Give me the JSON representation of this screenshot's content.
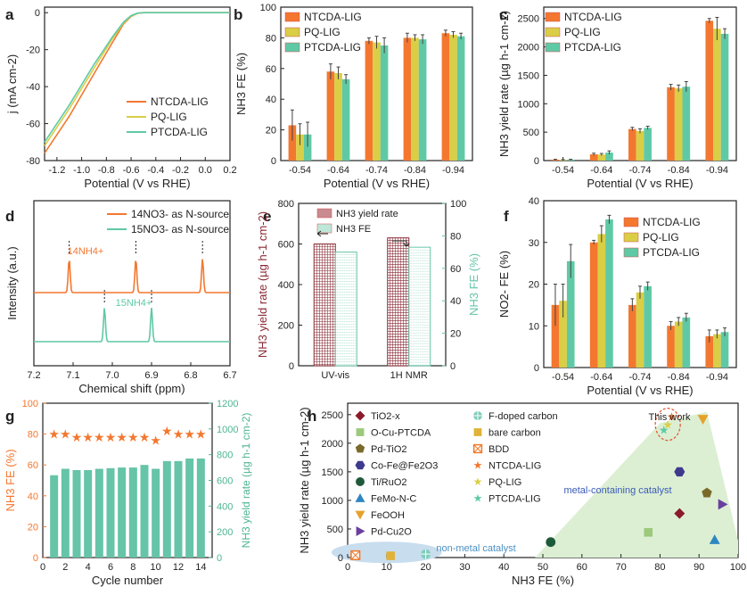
{
  "colors": {
    "orange": "#F4772F",
    "yellow": "#D9CE45",
    "teal": "#5FC9A6",
    "maroon": "#8A2A35",
    "mint": "#66C4A8",
    "axisOrange": "#F4772F",
    "axisTeal": "#4DB592",
    "annot": "#3A5BB8",
    "region_green": "#DCEFD3",
    "region_blue": "#C8DDEE",
    "marker_red": "#E55A35"
  },
  "panel_labels": [
    "a",
    "b",
    "c",
    "d",
    "e",
    "f",
    "g",
    "h"
  ],
  "chart_data": [
    {
      "panel": "a",
      "type": "line",
      "xlabel": "Potential (V vs RHE)",
      "ylabel": "j (mA cm-2)",
      "xlim": [
        -1.3,
        0.2
      ],
      "ylim": [
        -80,
        3
      ],
      "xticks": [
        "-1.2",
        "-1.0",
        "-0.8",
        "-0.6",
        "-0.4",
        "-0.2",
        "0.0",
        "0.2"
      ],
      "yticks": [
        "0",
        "-20",
        "-40",
        "-60",
        "-80"
      ],
      "series": [
        {
          "name": "NTCDA-LIG",
          "onset": -0.56,
          "points": [
            [
              -1.3,
              -76
            ],
            [
              -1.1,
              -56
            ],
            [
              -0.9,
              -33
            ],
            [
              -0.75,
              -16
            ],
            [
              -0.66,
              -6
            ],
            [
              -0.6,
              -2
            ],
            [
              -0.55,
              -0.4
            ],
            [
              -0.5,
              0
            ],
            [
              0.2,
              0
            ]
          ]
        },
        {
          "name": "PQ-LIG",
          "onset": -0.55,
          "points": [
            [
              -1.3,
              -72
            ],
            [
              -1.1,
              -52
            ],
            [
              -0.9,
              -30
            ],
            [
              -0.75,
              -14
            ],
            [
              -0.66,
              -5.5
            ],
            [
              -0.6,
              -1.8
            ],
            [
              -0.55,
              -0.4
            ],
            [
              -0.5,
              0
            ],
            [
              0.2,
              0
            ]
          ]
        },
        {
          "name": "PTCDA-LIG",
          "onset": -0.54,
          "points": [
            [
              -1.3,
              -70
            ],
            [
              -1.1,
              -50
            ],
            [
              -0.9,
              -28
            ],
            [
              -0.75,
              -13
            ],
            [
              -0.66,
              -5
            ],
            [
              -0.6,
              -1.6
            ],
            [
              -0.55,
              -0.3
            ],
            [
              -0.5,
              0
            ],
            [
              0.2,
              0
            ]
          ]
        }
      ]
    },
    {
      "panel": "b",
      "type": "bar",
      "xlabel": "Potential (V vs RHE)",
      "ylabel": "NH3 FE (%)",
      "categories": [
        "-0.54",
        "-0.64",
        "-0.74",
        "-0.84",
        "-0.94"
      ],
      "ylim": [
        0,
        100
      ],
      "yticks": [
        "0",
        "20",
        "40",
        "60",
        "80",
        "100"
      ],
      "series": [
        {
          "name": "NTCDA-LIG",
          "values": [
            23,
            58,
            78,
            80,
            83
          ],
          "errors": [
            10,
            5,
            2,
            3,
            2
          ]
        },
        {
          "name": "PQ-LIG",
          "values": [
            17,
            57,
            77,
            80,
            82
          ],
          "errors": [
            7,
            4,
            4,
            2,
            2
          ]
        },
        {
          "name": "PTCDA-LIG",
          "values": [
            17,
            53,
            75,
            79,
            81
          ],
          "errors": [
            8,
            3,
            5,
            3,
            2
          ]
        }
      ]
    },
    {
      "panel": "c",
      "type": "bar",
      "xlabel": "Potential (V vs RHE)",
      "ylabel": "NH3 yield rate (µg h-1 cm-2)",
      "categories": [
        "-0.54",
        "-0.64",
        "-0.74",
        "-0.84",
        "-0.94"
      ],
      "ylim": [
        0,
        2700
      ],
      "yticks": [
        "0",
        "500",
        "1000",
        "1500",
        "2000",
        "2500"
      ],
      "series": [
        {
          "name": "NTCDA-LIG",
          "values": [
            15,
            110,
            555,
            1290,
            2460
          ],
          "errors": [
            8,
            20,
            30,
            50,
            40
          ]
        },
        {
          "name": "PQ-LIG",
          "values": [
            10,
            105,
            520,
            1270,
            2320
          ],
          "errors": [
            8,
            20,
            40,
            60,
            200
          ]
        },
        {
          "name": "PTCDA-LIG",
          "values": [
            15,
            140,
            575,
            1300,
            2230
          ],
          "errors": [
            8,
            30,
            30,
            90,
            90
          ]
        }
      ]
    },
    {
      "panel": "d",
      "type": "line",
      "xlabel": "Chemical shift (ppm)",
      "ylabel": "Intensity (a.u.)",
      "xlim": [
        7.2,
        6.7
      ],
      "xticks": [
        "7.2",
        "7.1",
        "7.0",
        "6.9",
        "6.8",
        "6.7"
      ],
      "series": [
        {
          "name": "14NO3- as N-source",
          "peaks": [
            7.11,
            6.94,
            6.77
          ],
          "peak_label": "14NH4+"
        },
        {
          "name": "15NO3- as N-source",
          "peaks": [
            7.02,
            6.9
          ],
          "peak_label": "15NH4+"
        }
      ]
    },
    {
      "panel": "e",
      "type": "bar",
      "categories": [
        "UV-vis",
        "1H NMR"
      ],
      "ylabel_left": "NH3 yield rate (µg h-1 cm-2)",
      "ylabel_right": "NH3 FE (%)",
      "ylim_left": [
        0,
        800
      ],
      "ylim_right": [
        0,
        100
      ],
      "yticks_left": [
        "0",
        "200",
        "400",
        "600",
        "800"
      ],
      "yticks_right": [
        "0",
        "20",
        "40",
        "60",
        "80",
        "100"
      ],
      "series": [
        {
          "name": "NH3 yield rate",
          "axis": "left",
          "values": [
            600,
            630
          ]
        },
        {
          "name": "NH3 FE",
          "axis": "right",
          "values": [
            70,
            73
          ]
        }
      ]
    },
    {
      "panel": "f",
      "type": "bar",
      "xlabel": "Potential (V vs RHE)",
      "ylabel": "NO2- FE (%)",
      "categories": [
        "-0.54",
        "-0.64",
        "-0.74",
        "-0.84",
        "-0.94"
      ],
      "ylim": [
        0,
        40
      ],
      "yticks": [
        "0",
        "10",
        "20",
        "30",
        "40"
      ],
      "series": [
        {
          "name": "NTCDA-LIG",
          "values": [
            15,
            30,
            15,
            10,
            7.5
          ],
          "errors": [
            5,
            0.5,
            1.5,
            1,
            1.5
          ]
        },
        {
          "name": "PQ-LIG",
          "values": [
            16,
            32,
            18,
            11,
            8
          ],
          "errors": [
            4,
            2,
            1.5,
            1,
            1
          ]
        },
        {
          "name": "PTCDA-LIG",
          "values": [
            25.5,
            35.5,
            19.5,
            12,
            8.5
          ],
          "errors": [
            4,
            1,
            1,
            1,
            1
          ]
        }
      ]
    },
    {
      "panel": "g",
      "type": "bar",
      "xlabel": "Cycle number",
      "ylabel_left": "NH3 FE (%)",
      "ylabel_right": "NH3 yield rate (µg h-1 cm-2)",
      "xlim": [
        0,
        15
      ],
      "xticks": [
        "0",
        "2",
        "4",
        "6",
        "8",
        "10",
        "12",
        "14"
      ],
      "ylim_left": [
        0,
        100
      ],
      "yticks_left": [
        "0",
        "20",
        "40",
        "60",
        "80",
        "100"
      ],
      "ylim_right": [
        0,
        1200
      ],
      "yticks_right": [
        "0",
        "200",
        "400",
        "600",
        "800",
        "1000",
        "1200"
      ],
      "x": [
        1,
        2,
        3,
        4,
        5,
        6,
        7,
        8,
        9,
        10,
        11,
        12,
        13,
        14
      ],
      "series": [
        {
          "name": "NH3 FE",
          "axis": "left",
          "values": [
            80,
            80,
            78,
            78,
            78,
            78,
            78,
            78,
            78,
            76,
            82,
            80,
            80,
            80
          ]
        },
        {
          "name": "NH3 yield rate",
          "axis": "right",
          "values": [
            640,
            690,
            680,
            680,
            690,
            695,
            700,
            700,
            720,
            690,
            750,
            750,
            770,
            770
          ]
        }
      ]
    },
    {
      "panel": "h",
      "type": "scatter",
      "xlabel": "NH3 FE (%)",
      "ylabel": "NH3 yield rate (µg h-1 cm-2)",
      "xlim": [
        0,
        100
      ],
      "ylim": [
        0,
        2700
      ],
      "xticks": [
        "0",
        "10",
        "20",
        "30",
        "40",
        "50",
        "60",
        "70",
        "80",
        "90",
        "100"
      ],
      "yticks": [
        "0",
        "500",
        "1000",
        "1500",
        "2000",
        "2500"
      ],
      "annotations": [
        "This work",
        "metal-containing catalyst",
        "non-metal catalyst"
      ],
      "points": [
        {
          "name": "TiO2-x",
          "x": 85,
          "y": 770,
          "shape": "diamond",
          "color": "#8B1A2B"
        },
        {
          "name": "O-Cu-PTCDA",
          "x": 77,
          "y": 440,
          "shape": "square",
          "color": "#9CC97A"
        },
        {
          "name": "Pd-TiO2",
          "x": 92,
          "y": 1130,
          "shape": "pentagon",
          "color": "#7A6A2A"
        },
        {
          "name": "Co-Fe@Fe2O3",
          "x": 85,
          "y": 1500,
          "shape": "hexagon",
          "color": "#3D3A8E"
        },
        {
          "name": "Ti/RuO2",
          "x": 52,
          "y": 270,
          "shape": "circle",
          "color": "#1E5A3A"
        },
        {
          "name": "FeMo-N-C",
          "x": 94,
          "y": 310,
          "shape": "triangle-up",
          "color": "#2E86C1"
        },
        {
          "name": "FeOOH",
          "x": 91,
          "y": 2420,
          "shape": "triangle-down",
          "color": "#E5A22A"
        },
        {
          "name": "Pd-Cu2O",
          "x": 96,
          "y": 930,
          "shape": "triangle-right",
          "color": "#6B3FA0"
        },
        {
          "name": "F-doped carbon",
          "x": 20,
          "y": 60,
          "shape": "circle-cross",
          "color": "#7FCDBB"
        },
        {
          "name": "bare carbon",
          "x": 11,
          "y": 30,
          "shape": "square",
          "color": "#E0B23A"
        },
        {
          "name": "BDD",
          "x": 2,
          "y": 40,
          "shape": "square-cross",
          "color": "#F07A2A"
        },
        {
          "name": "NTCDA-LIG",
          "x": 83,
          "y": 2460,
          "shape": "star",
          "color": "#F4772F"
        },
        {
          "name": "PQ-LIG",
          "x": 82,
          "y": 2320,
          "shape": "star",
          "color": "#D9CE45"
        },
        {
          "name": "PTCDA-LIG",
          "x": 81,
          "y": 2230,
          "shape": "star",
          "color": "#5FC9A6"
        }
      ]
    }
  ]
}
